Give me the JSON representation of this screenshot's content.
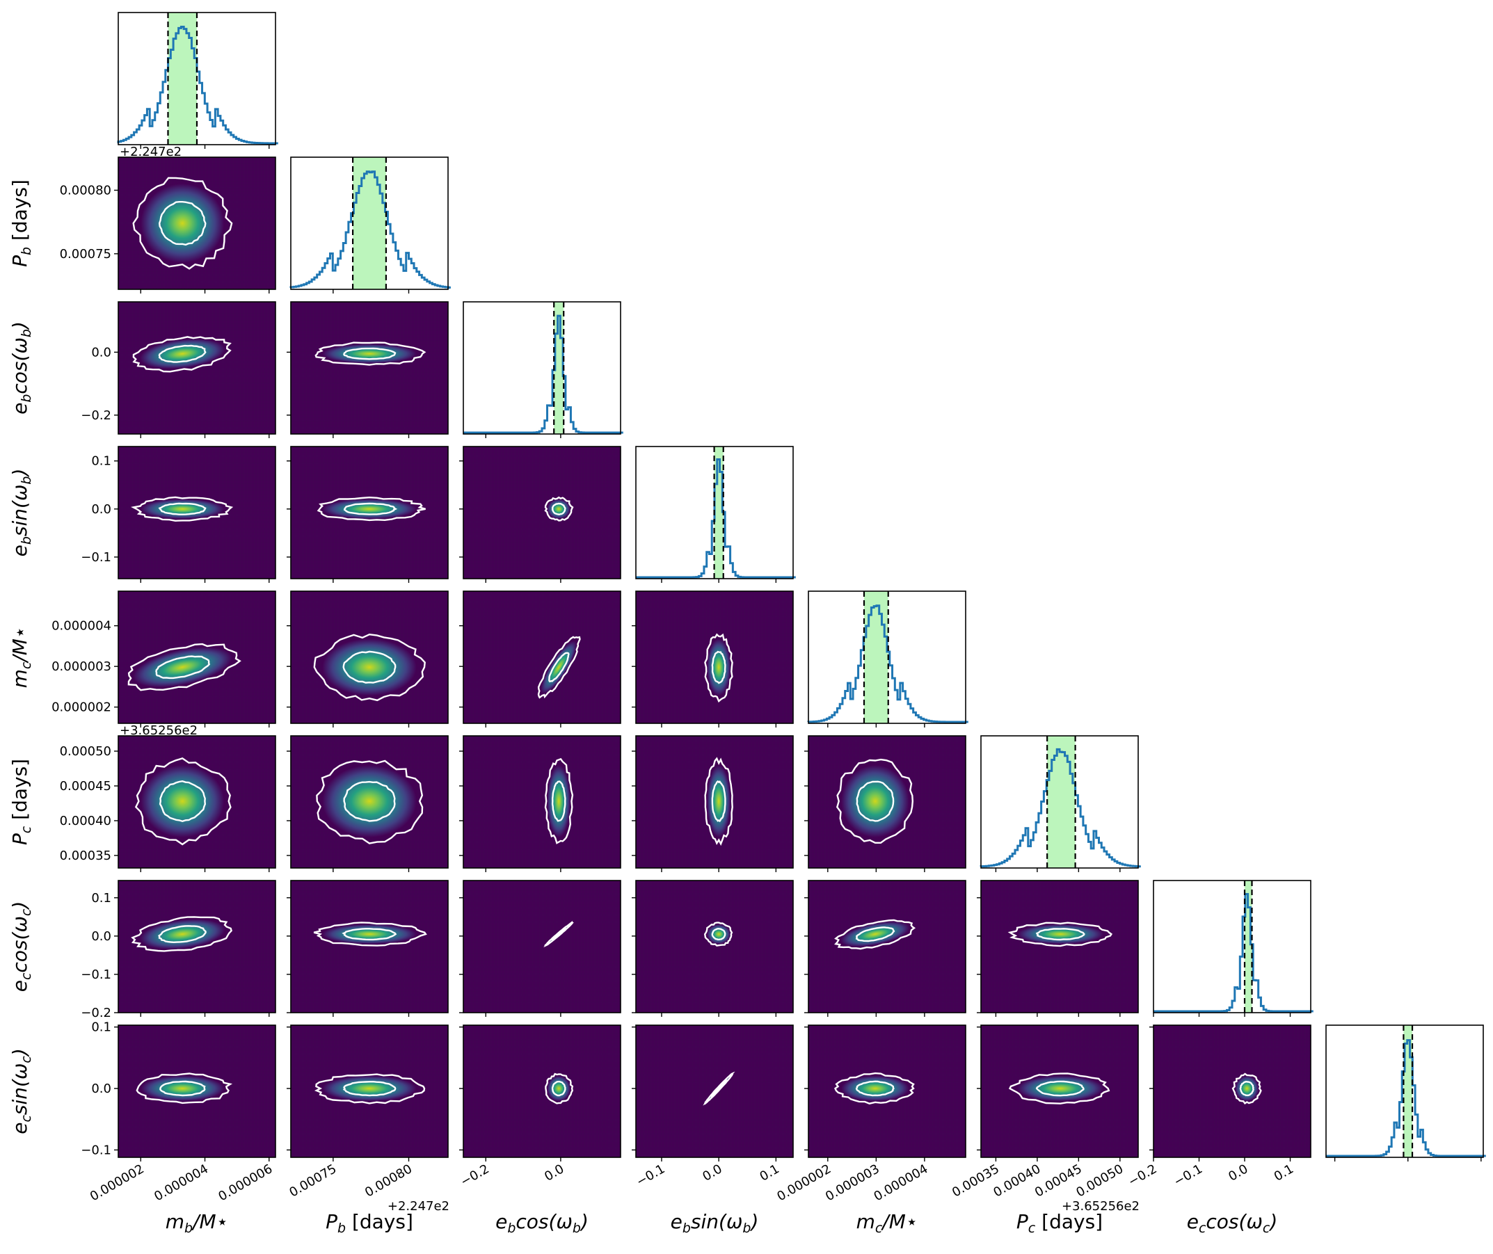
{
  "chart_data": {
    "type": "corner",
    "parameters": [
      {
        "label": "m_b/M_⋆",
        "label_main": "m",
        "label_sub": "b",
        "label_suffix": "/M⋆",
        "label_italic": true,
        "range": [
          1.3e-06,
          6.2e-06
        ],
        "mean": 3.3e-06,
        "sd": 5e-07,
        "ci": [
          2.85e-06,
          3.75e-06
        ],
        "ticks": [
          2e-06,
          4e-06,
          6e-06
        ],
        "tick_labels": [
          "0.000002",
          "0.000004",
          "0.000006"
        ],
        "offset": ""
      },
      {
        "label": "P_b [days]",
        "label_main": "P",
        "label_sub": "b",
        "label_suffix": " [days]",
        "label_italic": false,
        "range": [
          0.000722,
          0.000826
        ],
        "mean": 0.000774,
        "sd": 1.2e-05,
        "ci": [
          0.000763,
          0.000785
        ],
        "ticks": [
          0.00075,
          0.0008
        ],
        "tick_labels": [
          "0.00075",
          "0.00080"
        ],
        "offset": "+2.247e2"
      },
      {
        "label": "e_b cos(ω_b)",
        "label_main": "e",
        "label_sub": "b",
        "label_suffix": "cos(ω",
        "label_close_sub": "b",
        "label_italic": true,
        "range": [
          -0.26,
          0.16
        ],
        "mean": -0.005,
        "sd": 0.012,
        "ci": [
          -0.018,
          0.008
        ],
        "ticks": [
          -0.2,
          0.0
        ],
        "tick_labels": [
          "−0.2",
          "0.0"
        ],
        "offset": ""
      },
      {
        "label": "e_b sin(ω_b)",
        "label_main": "e",
        "label_sub": "b",
        "label_suffix": "sin(ω",
        "label_close_sub": "b",
        "label_italic": true,
        "range": [
          -0.145,
          0.13
        ],
        "mean": 0.0,
        "sd": 0.008,
        "ci": [
          -0.008,
          0.008
        ],
        "ticks": [
          -0.1,
          0.0,
          0.1
        ],
        "tick_labels": [
          "−0.1",
          "0.0",
          "0.1"
        ],
        "offset": ""
      },
      {
        "label": "m_c/M_⋆",
        "label_main": "m",
        "label_sub": "c",
        "label_suffix": "/M⋆",
        "label_italic": true,
        "range": [
          1.6e-06,
          4.85e-06
        ],
        "mean": 2.98e-06,
        "sd": 2.7e-07,
        "ci": [
          2.75e-06,
          3.25e-06
        ],
        "ticks": [
          2e-06,
          3e-06,
          4e-06
        ],
        "tick_labels": [
          "0.000002",
          "0.000003",
          "0.000004"
        ],
        "offset": ""
      },
      {
        "label": "P_c [days]",
        "label_main": "P",
        "label_sub": "c",
        "label_suffix": " [days]",
        "label_italic": false,
        "range": [
          0.000332,
          0.000522
        ],
        "mean": 0.000428,
        "sd": 2e-05,
        "ci": [
          0.000412,
          0.000446
        ],
        "ticks": [
          0.00035,
          0.0004,
          0.00045,
          0.0005
        ],
        "tick_labels": [
          "0.00035",
          "0.00040",
          "0.00045",
          "0.00050"
        ],
        "offset": "+3.65256e2"
      },
      {
        "label": "e_c cos(ω_c)",
        "label_main": "e",
        "label_sub": "c",
        "label_suffix": "cos(ω",
        "label_close_sub": "c",
        "label_italic": true,
        "range": [
          -0.2,
          0.145
        ],
        "mean": 0.005,
        "sd": 0.01,
        "ci": [
          0.0,
          0.016
        ],
        "ticks": [
          -0.2,
          -0.1,
          0.0,
          0.1
        ],
        "tick_labels": [
          "−0.2",
          "−0.1",
          "0.0",
          "0.1"
        ],
        "offset": ""
      },
      {
        "label": "e_c sin(ω_c)",
        "label_main": "e",
        "label_sub": "c",
        "label_suffix": "sin(ω",
        "label_close_sub": "c",
        "label_italic": true,
        "range": [
          -0.112,
          0.103
        ],
        "mean": 0.0,
        "sd": 0.008,
        "ci": [
          -0.006,
          0.006
        ],
        "ticks": [
          -0.1,
          0.0,
          0.1
        ],
        "tick_labels": [
          "−0.1",
          "0.0",
          "0.1"
        ],
        "offset": ""
      }
    ],
    "correlations": [
      [
        1,
        0,
        0,
        0,
        0,
        0,
        0,
        0
      ],
      [
        0,
        1,
        0,
        0,
        0,
        0,
        0,
        0
      ],
      [
        0.3,
        0,
        1,
        0,
        0,
        0,
        0,
        0
      ],
      [
        0,
        0,
        0,
        1,
        0,
        0,
        0,
        0
      ],
      [
        0.15,
        0,
        0.65,
        0,
        1,
        0,
        0,
        0
      ],
      [
        0,
        0,
        0,
        0,
        0,
        1,
        0,
        0
      ],
      [
        0.3,
        0,
        0.98,
        0,
        0.5,
        0,
        1,
        0
      ],
      [
        0,
        0,
        0,
        0.98,
        0,
        0,
        0,
        1
      ]
    ],
    "colors": {
      "background": "#440154",
      "histogram": "#1f77b4",
      "interval_fill": "#90ee90",
      "contour": "#ffffff",
      "interval_lines": "#000000"
    },
    "x_labels": [
      "m_b/M⋆",
      "P_b [days]",
      "e_b cos(ω_b)",
      "e_b sin(ω_b)",
      "m_c/M⋆",
      "P_c [days]",
      "e_c cos(ω_c)"
    ],
    "y_labels": [
      "P_b [days]",
      "e_b cos(ω_b)",
      "e_b sin(ω_b)",
      "m_c/M⋆",
      "P_c [days]",
      "e_c cos(ω_c)",
      "e_c sin(ω_c)"
    ]
  }
}
